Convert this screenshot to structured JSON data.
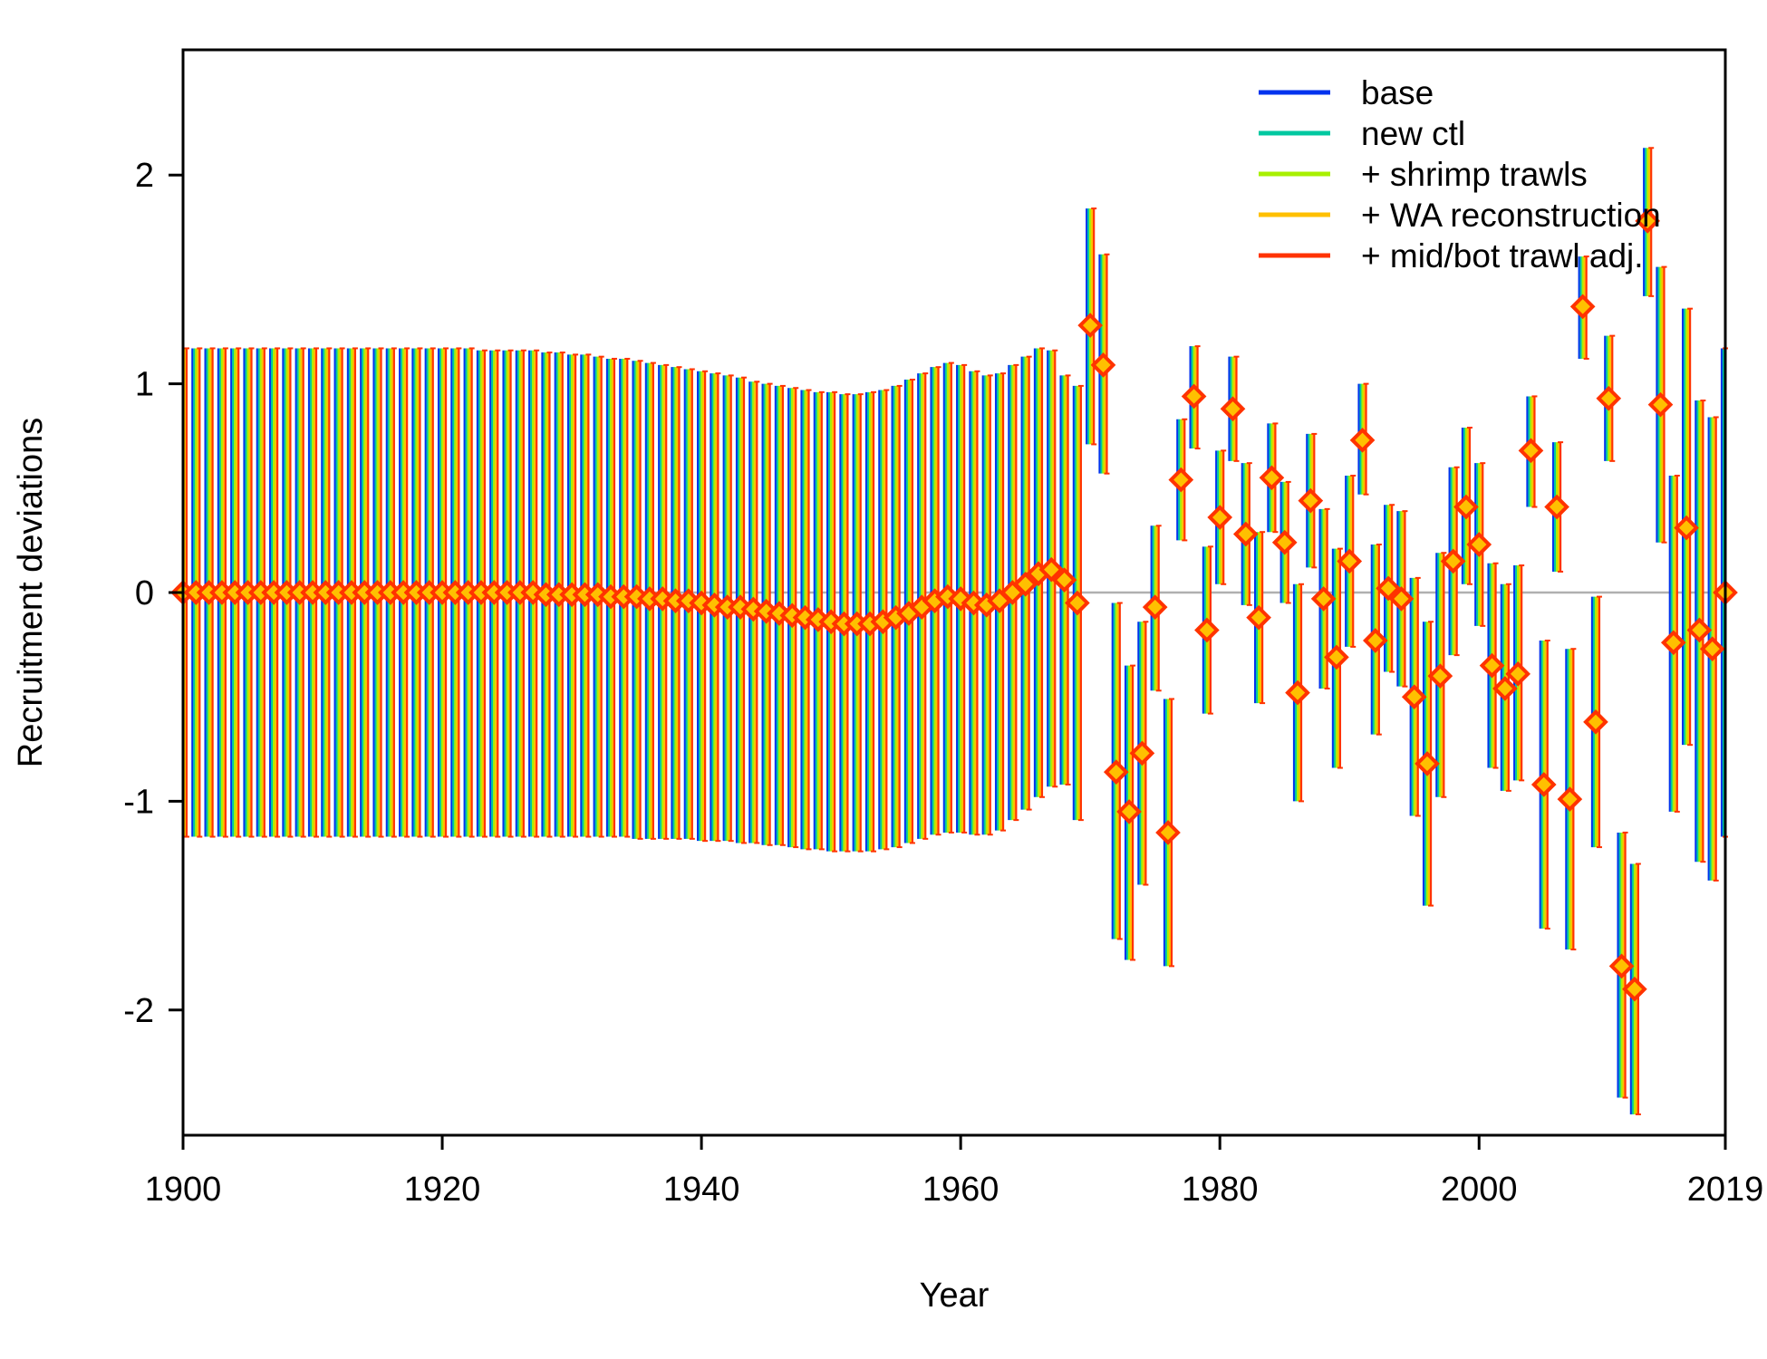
{
  "chart_data": {
    "type": "scatter",
    "xlabel": "Year",
    "ylabel": "Recruitment deviations",
    "xlim": [
      1900,
      2019
    ],
    "ylim": [
      -2.6,
      2.6
    ],
    "x_ticks": [
      1900,
      1920,
      1940,
      1960,
      1980,
      2000,
      2019
    ],
    "y_ticks": [
      -2,
      -1,
      0,
      1,
      2
    ],
    "reference_line": 0,
    "legend_position": "top-right",
    "series": [
      {
        "name": "base",
        "color": "#0033ee"
      },
      {
        "name": "new ctl",
        "color": "#00c8a0"
      },
      {
        "name": "+ shrimp trawls",
        "color": "#a8f000"
      },
      {
        "name": "+ WA reconstruction",
        "color": "#ffc000"
      },
      {
        "name": "+ mid/bot trawl adj.",
        "color": "#ff3300"
      }
    ],
    "marker": {
      "fill": "#ffc000",
      "edge": "#ff3300",
      "shape": "diamond"
    },
    "points": [
      {
        "year": 1900,
        "y": 0.0,
        "lo": -1.17,
        "hi": 1.17
      },
      {
        "year": 1901,
        "y": 0.0,
        "lo": -1.17,
        "hi": 1.17
      },
      {
        "year": 1902,
        "y": 0.0,
        "lo": -1.17,
        "hi": 1.17
      },
      {
        "year": 1903,
        "y": 0.0,
        "lo": -1.17,
        "hi": 1.17
      },
      {
        "year": 1904,
        "y": 0.0,
        "lo": -1.17,
        "hi": 1.17
      },
      {
        "year": 1905,
        "y": 0.0,
        "lo": -1.17,
        "hi": 1.17
      },
      {
        "year": 1906,
        "y": 0.0,
        "lo": -1.17,
        "hi": 1.17
      },
      {
        "year": 1907,
        "y": 0.0,
        "lo": -1.17,
        "hi": 1.17
      },
      {
        "year": 1908,
        "y": 0.0,
        "lo": -1.17,
        "hi": 1.17
      },
      {
        "year": 1909,
        "y": 0.0,
        "lo": -1.17,
        "hi": 1.17
      },
      {
        "year": 1910,
        "y": 0.0,
        "lo": -1.17,
        "hi": 1.17
      },
      {
        "year": 1911,
        "y": 0.0,
        "lo": -1.17,
        "hi": 1.17
      },
      {
        "year": 1912,
        "y": 0.0,
        "lo": -1.17,
        "hi": 1.17
      },
      {
        "year": 1913,
        "y": 0.0,
        "lo": -1.17,
        "hi": 1.17
      },
      {
        "year": 1914,
        "y": 0.0,
        "lo": -1.17,
        "hi": 1.17
      },
      {
        "year": 1915,
        "y": 0.0,
        "lo": -1.17,
        "hi": 1.17
      },
      {
        "year": 1916,
        "y": 0.0,
        "lo": -1.17,
        "hi": 1.17
      },
      {
        "year": 1917,
        "y": 0.0,
        "lo": -1.17,
        "hi": 1.17
      },
      {
        "year": 1918,
        "y": 0.0,
        "lo": -1.17,
        "hi": 1.17
      },
      {
        "year": 1919,
        "y": 0.0,
        "lo": -1.17,
        "hi": 1.17
      },
      {
        "year": 1920,
        "y": 0.0,
        "lo": -1.17,
        "hi": 1.17
      },
      {
        "year": 1921,
        "y": 0.0,
        "lo": -1.17,
        "hi": 1.17
      },
      {
        "year": 1922,
        "y": 0.0,
        "lo": -1.17,
        "hi": 1.17
      },
      {
        "year": 1923,
        "y": 0.0,
        "lo": -1.17,
        "hi": 1.16
      },
      {
        "year": 1924,
        "y": 0.0,
        "lo": -1.17,
        "hi": 1.16
      },
      {
        "year": 1925,
        "y": 0.0,
        "lo": -1.17,
        "hi": 1.16
      },
      {
        "year": 1926,
        "y": 0.0,
        "lo": -1.17,
        "hi": 1.16
      },
      {
        "year": 1927,
        "y": 0.0,
        "lo": -1.17,
        "hi": 1.16
      },
      {
        "year": 1928,
        "y": -0.01,
        "lo": -1.17,
        "hi": 1.15
      },
      {
        "year": 1929,
        "y": -0.01,
        "lo": -1.17,
        "hi": 1.15
      },
      {
        "year": 1930,
        "y": -0.01,
        "lo": -1.17,
        "hi": 1.14
      },
      {
        "year": 1931,
        "y": -0.01,
        "lo": -1.17,
        "hi": 1.14
      },
      {
        "year": 1932,
        "y": -0.01,
        "lo": -1.17,
        "hi": 1.13
      },
      {
        "year": 1933,
        "y": -0.02,
        "lo": -1.17,
        "hi": 1.12
      },
      {
        "year": 1934,
        "y": -0.02,
        "lo": -1.17,
        "hi": 1.12
      },
      {
        "year": 1935,
        "y": -0.02,
        "lo": -1.18,
        "hi": 1.11
      },
      {
        "year": 1936,
        "y": -0.03,
        "lo": -1.18,
        "hi": 1.1
      },
      {
        "year": 1937,
        "y": -0.03,
        "lo": -1.18,
        "hi": 1.09
      },
      {
        "year": 1938,
        "y": -0.04,
        "lo": -1.18,
        "hi": 1.08
      },
      {
        "year": 1939,
        "y": -0.04,
        "lo": -1.18,
        "hi": 1.07
      },
      {
        "year": 1940,
        "y": -0.05,
        "lo": -1.19,
        "hi": 1.06
      },
      {
        "year": 1941,
        "y": -0.06,
        "lo": -1.19,
        "hi": 1.05
      },
      {
        "year": 1942,
        "y": -0.07,
        "lo": -1.19,
        "hi": 1.04
      },
      {
        "year": 1943,
        "y": -0.07,
        "lo": -1.2,
        "hi": 1.03
      },
      {
        "year": 1944,
        "y": -0.08,
        "lo": -1.2,
        "hi": 1.01
      },
      {
        "year": 1945,
        "y": -0.09,
        "lo": -1.21,
        "hi": 1.0
      },
      {
        "year": 1946,
        "y": -0.1,
        "lo": -1.21,
        "hi": 0.99
      },
      {
        "year": 1947,
        "y": -0.11,
        "lo": -1.22,
        "hi": 0.98
      },
      {
        "year": 1948,
        "y": -0.12,
        "lo": -1.23,
        "hi": 0.97
      },
      {
        "year": 1949,
        "y": -0.13,
        "lo": -1.23,
        "hi": 0.96
      },
      {
        "year": 1950,
        "y": -0.14,
        "lo": -1.24,
        "hi": 0.96
      },
      {
        "year": 1951,
        "y": -0.15,
        "lo": -1.24,
        "hi": 0.95
      },
      {
        "year": 1952,
        "y": -0.15,
        "lo": -1.24,
        "hi": 0.95
      },
      {
        "year": 1953,
        "y": -0.15,
        "lo": -1.24,
        "hi": 0.96
      },
      {
        "year": 1954,
        "y": -0.14,
        "lo": -1.23,
        "hi": 0.97
      },
      {
        "year": 1955,
        "y": -0.12,
        "lo": -1.22,
        "hi": 0.99
      },
      {
        "year": 1956,
        "y": -0.1,
        "lo": -1.2,
        "hi": 1.02
      },
      {
        "year": 1957,
        "y": -0.07,
        "lo": -1.18,
        "hi": 1.05
      },
      {
        "year": 1958,
        "y": -0.04,
        "lo": -1.16,
        "hi": 1.08
      },
      {
        "year": 1959,
        "y": -0.02,
        "lo": -1.15,
        "hi": 1.1
      },
      {
        "year": 1960,
        "y": -0.03,
        "lo": -1.15,
        "hi": 1.09
      },
      {
        "year": 1961,
        "y": -0.05,
        "lo": -1.16,
        "hi": 1.06
      },
      {
        "year": 1962,
        "y": -0.06,
        "lo": -1.16,
        "hi": 1.04
      },
      {
        "year": 1963,
        "y": -0.04,
        "lo": -1.14,
        "hi": 1.05
      },
      {
        "year": 1964,
        "y": 0.0,
        "lo": -1.09,
        "hi": 1.09
      },
      {
        "year": 1965,
        "y": 0.04,
        "lo": -1.04,
        "hi": 1.13
      },
      {
        "year": 1966,
        "y": 0.09,
        "lo": -0.98,
        "hi": 1.17
      },
      {
        "year": 1967,
        "y": 0.11,
        "lo": -0.93,
        "hi": 1.16
      },
      {
        "year": 1968,
        "y": 0.06,
        "lo": -0.92,
        "hi": 1.04
      },
      {
        "year": 1969,
        "y": -0.05,
        "lo": -1.09,
        "hi": 0.99
      },
      {
        "year": 1970,
        "y": 1.28,
        "lo": 0.71,
        "hi": 1.84
      },
      {
        "year": 1971,
        "y": 1.09,
        "lo": 0.57,
        "hi": 1.62
      },
      {
        "year": 1972,
        "y": -0.86,
        "lo": -1.66,
        "hi": -0.05
      },
      {
        "year": 1973,
        "y": -1.05,
        "lo": -1.76,
        "hi": -0.35
      },
      {
        "year": 1974,
        "y": -0.77,
        "lo": -1.4,
        "hi": -0.14
      },
      {
        "year": 1975,
        "y": -0.07,
        "lo": -0.47,
        "hi": 0.32
      },
      {
        "year": 1976,
        "y": -1.15,
        "lo": -1.79,
        "hi": -0.51
      },
      {
        "year": 1977,
        "y": 0.54,
        "lo": 0.25,
        "hi": 0.83
      },
      {
        "year": 1978,
        "y": 0.94,
        "lo": 0.69,
        "hi": 1.18
      },
      {
        "year": 1979,
        "y": -0.18,
        "lo": -0.58,
        "hi": 0.22
      },
      {
        "year": 1980,
        "y": 0.36,
        "lo": 0.04,
        "hi": 0.68
      },
      {
        "year": 1981,
        "y": 0.88,
        "lo": 0.63,
        "hi": 1.13
      },
      {
        "year": 1982,
        "y": 0.28,
        "lo": -0.06,
        "hi": 0.62
      },
      {
        "year": 1983,
        "y": -0.12,
        "lo": -0.53,
        "hi": 0.29
      },
      {
        "year": 1984,
        "y": 0.55,
        "lo": 0.29,
        "hi": 0.81
      },
      {
        "year": 1985,
        "y": 0.24,
        "lo": -0.05,
        "hi": 0.53
      },
      {
        "year": 1986,
        "y": -0.48,
        "lo": -1.0,
        "hi": 0.04
      },
      {
        "year": 1987,
        "y": 0.44,
        "lo": 0.12,
        "hi": 0.76
      },
      {
        "year": 1988,
        "y": -0.03,
        "lo": -0.46,
        "hi": 0.4
      },
      {
        "year": 1989,
        "y": -0.31,
        "lo": -0.84,
        "hi": 0.21
      },
      {
        "year": 1990,
        "y": 0.15,
        "lo": -0.26,
        "hi": 0.56
      },
      {
        "year": 1991,
        "y": 0.73,
        "lo": 0.47,
        "hi": 1.0
      },
      {
        "year": 1992,
        "y": -0.23,
        "lo": -0.68,
        "hi": 0.23
      },
      {
        "year": 1993,
        "y": 0.02,
        "lo": -0.38,
        "hi": 0.42
      },
      {
        "year": 1994,
        "y": -0.03,
        "lo": -0.45,
        "hi": 0.39
      },
      {
        "year": 1995,
        "y": -0.5,
        "lo": -1.07,
        "hi": 0.07
      },
      {
        "year": 1996,
        "y": -0.82,
        "lo": -1.5,
        "hi": -0.14
      },
      {
        "year": 1997,
        "y": -0.4,
        "lo": -0.98,
        "hi": 0.19
      },
      {
        "year": 1998,
        "y": 0.15,
        "lo": -0.3,
        "hi": 0.6
      },
      {
        "year": 1999,
        "y": 0.41,
        "lo": 0.04,
        "hi": 0.79
      },
      {
        "year": 2000,
        "y": 0.23,
        "lo": -0.16,
        "hi": 0.62
      },
      {
        "year": 2001,
        "y": -0.35,
        "lo": -0.84,
        "hi": 0.14
      },
      {
        "year": 2002,
        "y": -0.46,
        "lo": -0.95,
        "hi": 0.04
      },
      {
        "year": 2003,
        "y": -0.39,
        "lo": -0.9,
        "hi": 0.13
      },
      {
        "year": 2004,
        "y": 0.68,
        "lo": 0.41,
        "hi": 0.94
      },
      {
        "year": 2005,
        "y": -0.92,
        "lo": -1.61,
        "hi": -0.23
      },
      {
        "year": 2006,
        "y": 0.41,
        "lo": 0.1,
        "hi": 0.72
      },
      {
        "year": 2007,
        "y": -0.99,
        "lo": -1.71,
        "hi": -0.27
      },
      {
        "year": 2008,
        "y": 1.37,
        "lo": 1.12,
        "hi": 1.61
      },
      {
        "year": 2009,
        "y": -0.62,
        "lo": -1.22,
        "hi": -0.02
      },
      {
        "year": 2010,
        "y": 0.93,
        "lo": 0.63,
        "hi": 1.23
      },
      {
        "year": 2011,
        "y": -1.79,
        "lo": -2.42,
        "hi": -1.15
      },
      {
        "year": 2012,
        "y": -1.9,
        "lo": -2.5,
        "hi": -1.3
      },
      {
        "year": 2013,
        "y": 1.78,
        "lo": 1.42,
        "hi": 2.13
      },
      {
        "year": 2014,
        "y": 0.9,
        "lo": 0.24,
        "hi": 1.56
      },
      {
        "year": 2015,
        "y": -0.24,
        "lo": -1.05,
        "hi": 0.56
      },
      {
        "year": 2016,
        "y": 0.31,
        "lo": -0.73,
        "hi": 1.36
      },
      {
        "year": 2017,
        "y": -0.18,
        "lo": -1.29,
        "hi": 0.92
      },
      {
        "year": 2018,
        "y": -0.27,
        "lo": -1.38,
        "hi": 0.84
      },
      {
        "year": 2019,
        "y": 0.0,
        "lo": -1.17,
        "hi": 1.17
      }
    ]
  }
}
